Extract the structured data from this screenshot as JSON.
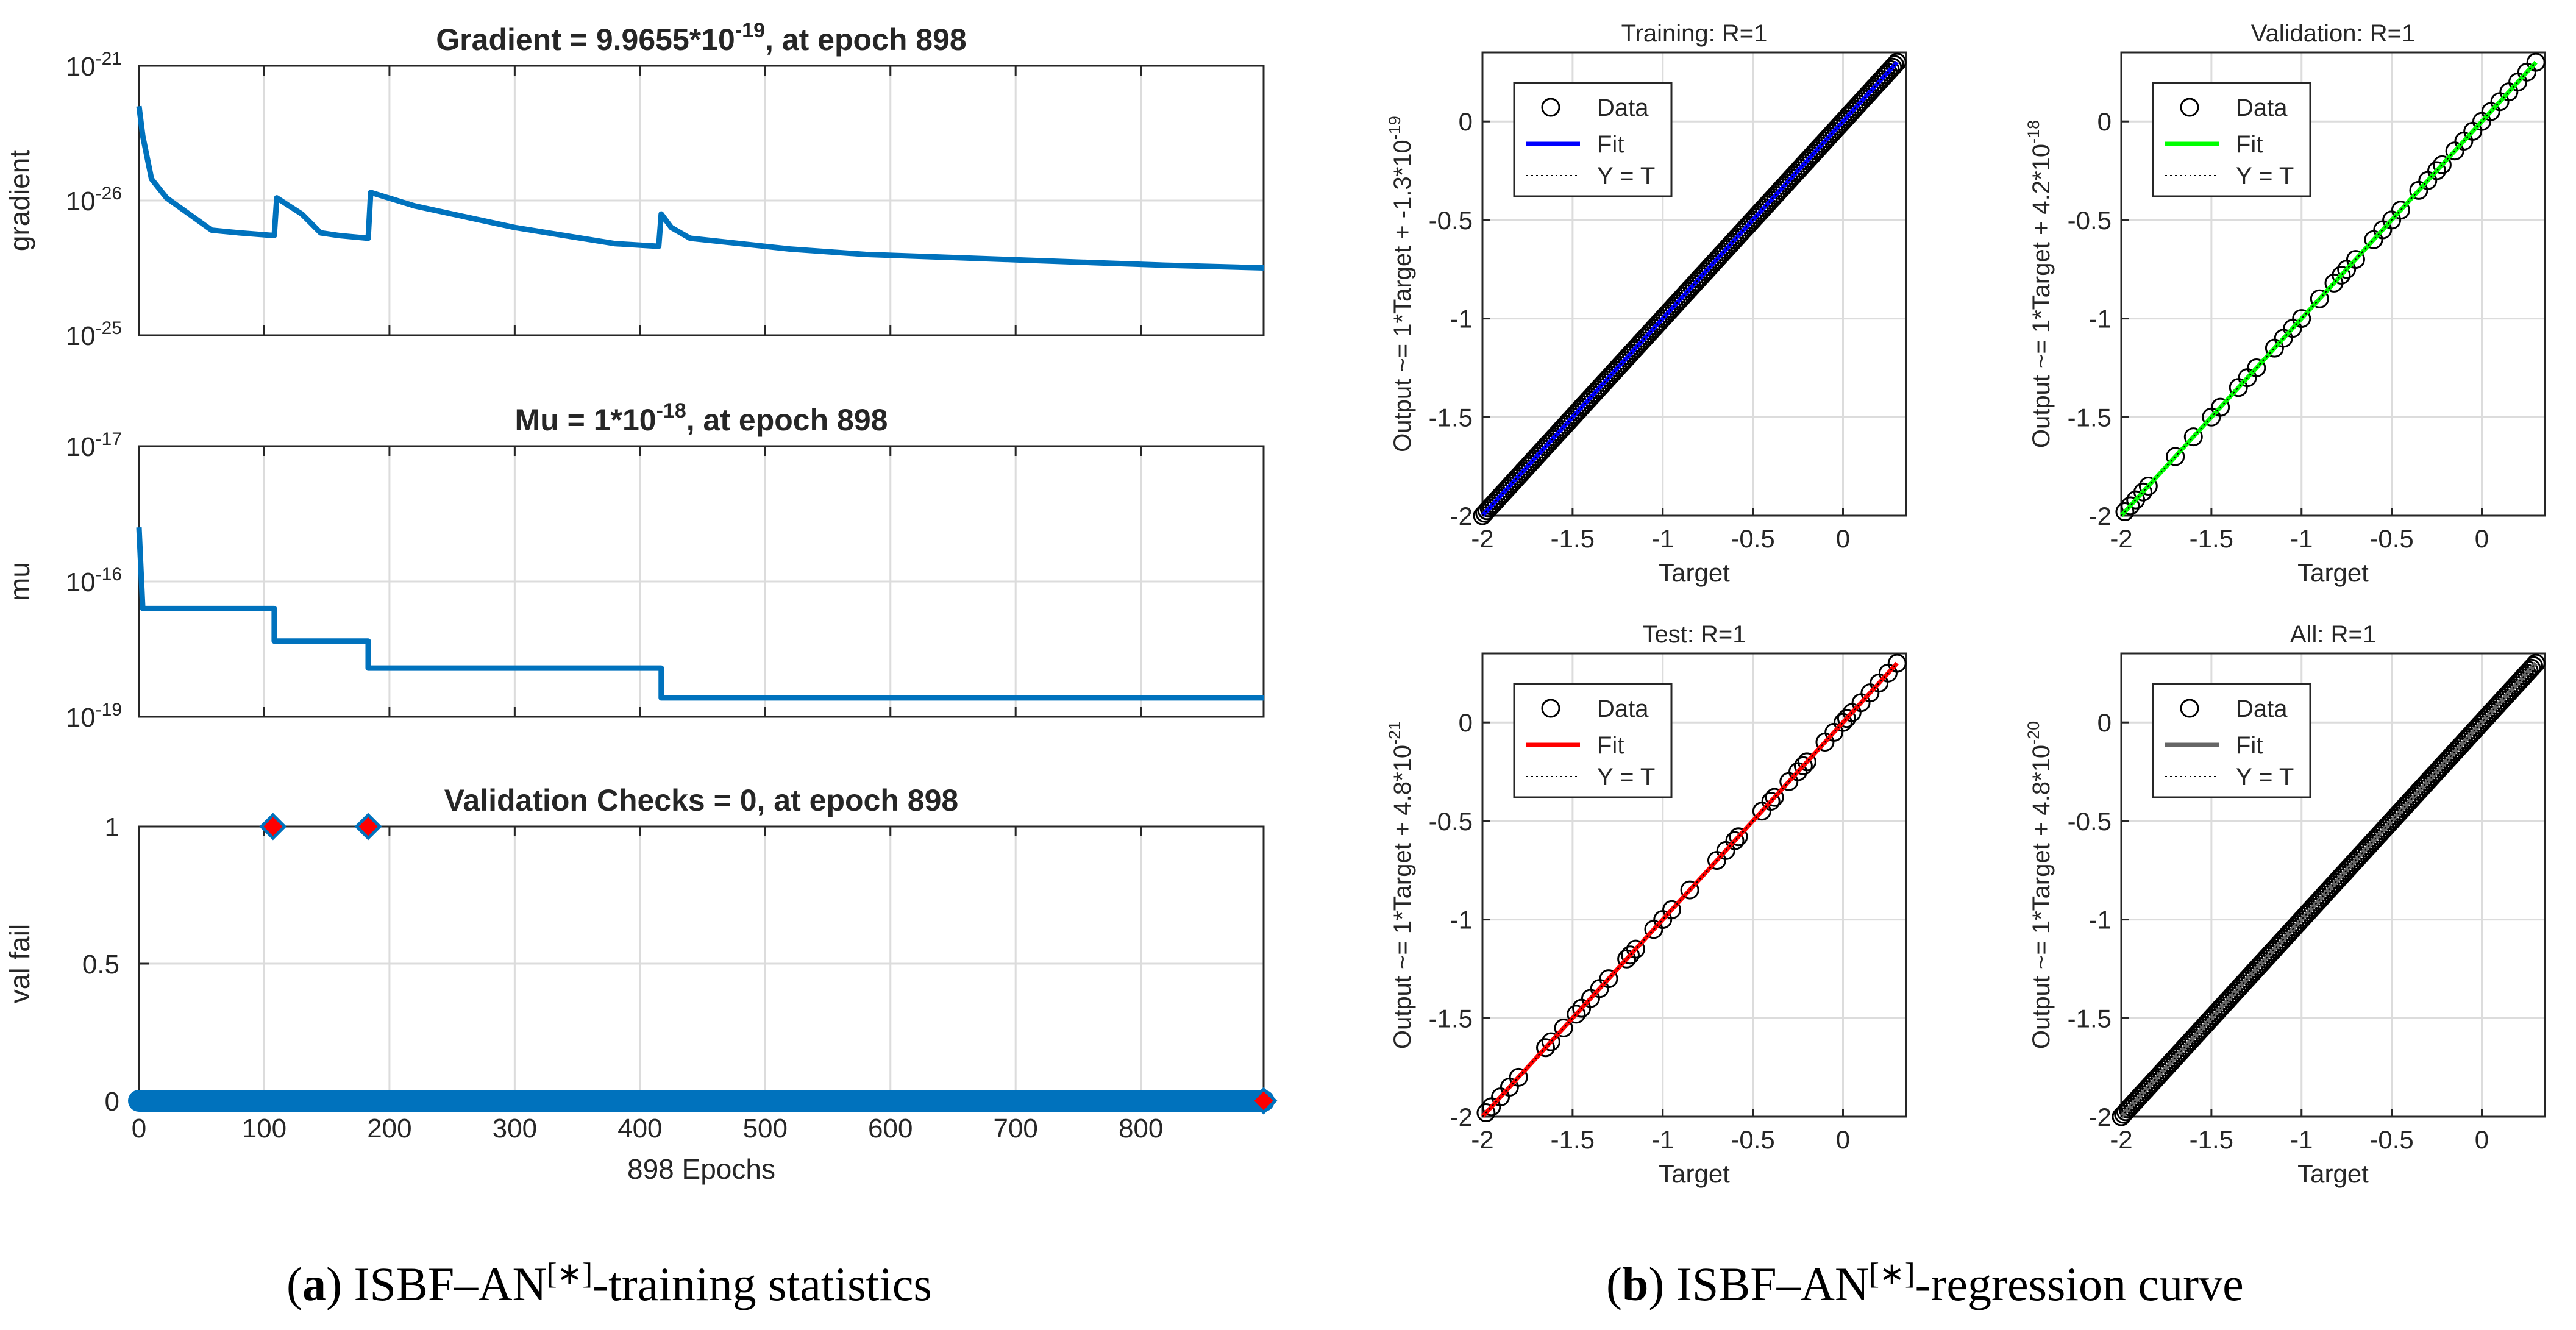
{
  "chart_data": [
    {
      "type": "line",
      "title": {
        "main": "Gradient = 9.9655*10",
        "exp": "-19",
        "tail": ", at epoch 898"
      },
      "ylabel": "gradient",
      "yscale": "log",
      "yticks": [
        {
          "base": "10",
          "exp": "-21"
        },
        {
          "base": "10",
          "exp": "-26"
        },
        {
          "base": "10",
          "exp": "-25"
        }
      ],
      "xlim": [
        0,
        898
      ],
      "x": [
        0,
        3,
        10,
        22,
        40,
        58,
        80,
        108,
        110,
        130,
        145,
        160,
        183,
        185,
        220,
        260,
        300,
        340,
        380,
        415,
        417,
        425,
        440,
        480,
        520,
        580,
        640,
        700,
        760,
        820,
        898
      ],
      "y": [
        0.15,
        0.26,
        0.42,
        0.49,
        0.55,
        0.61,
        0.62,
        0.63,
        0.49,
        0.55,
        0.62,
        0.63,
        0.64,
        0.47,
        0.52,
        0.56,
        0.6,
        0.63,
        0.66,
        0.67,
        0.55,
        0.6,
        0.64,
        0.66,
        0.68,
        0.7,
        0.71,
        0.72,
        0.73,
        0.74,
        0.75
      ],
      "y_note": "y expressed as fraction of axis height from top (log scale shown by tick labels)"
    },
    {
      "type": "line",
      "title": {
        "main": "Mu = 1*10",
        "exp": "-18",
        "tail": ", at epoch 898"
      },
      "ylabel": "mu",
      "yscale": "log",
      "yticks": [
        {
          "base": "10",
          "exp": "-17"
        },
        {
          "base": "10",
          "exp": "-16"
        },
        {
          "base": "10",
          "exp": "-19"
        }
      ],
      "xlim": [
        0,
        898
      ],
      "x": [
        0,
        3,
        3,
        108,
        108,
        183,
        183,
        417,
        417,
        898
      ],
      "y": [
        0.3,
        0.6,
        0.6,
        0.6,
        0.72,
        0.72,
        0.82,
        0.82,
        0.93,
        0.93
      ],
      "y_note": "y expressed as fraction of axis height from top (log scale shown by tick labels)"
    },
    {
      "type": "line",
      "title": "Validation Checks = 0, at epoch 898",
      "ylabel": "val fail",
      "xlabel": "898 Epochs",
      "ylim": [
        0,
        1
      ],
      "xlim": [
        0,
        898
      ],
      "xticks": [
        "0",
        "100",
        "200",
        "300",
        "400",
        "500",
        "600",
        "700",
        "800"
      ],
      "yticks": [
        "0",
        "0.5",
        "1"
      ],
      "marker_points": [
        {
          "x": 107,
          "y": 1
        },
        {
          "x": 183,
          "y": 1
        },
        {
          "x": 898,
          "y": 0
        }
      ],
      "baseline": {
        "from": 0,
        "to": 898,
        "y": 0
      }
    },
    {
      "type": "scatter",
      "title": "Training: R=1",
      "xlabel": "Target",
      "ylabel": "Output ~= 1*Target + -1.3*10",
      "ylabel_exp": "-19",
      "fit_color": "#0000ff",
      "point_mode": "dense",
      "xlim": [
        -2,
        0.35
      ],
      "ylim": [
        -2,
        0.35
      ],
      "ticks": [
        "-2",
        "-1.5",
        "-1",
        "-0.5",
        "0"
      ],
      "legend": [
        "Data",
        "Fit",
        "Y = T"
      ]
    },
    {
      "type": "scatter",
      "title": "Validation: R=1",
      "xlabel": "Target",
      "ylabel": "Output ~= 1*Target + 4.2*10",
      "ylabel_exp": "-18",
      "fit_color": "#00ff00",
      "point_mode": "sparse",
      "points": [
        -1.98,
        -1.95,
        -1.92,
        -1.88,
        -1.85,
        -1.7,
        -1.6,
        -1.5,
        -1.45,
        -1.35,
        -1.3,
        -1.25,
        -1.15,
        -1.1,
        -1.05,
        -1.0,
        -0.9,
        -0.82,
        -0.78,
        -0.75,
        -0.7,
        -0.6,
        -0.55,
        -0.5,
        -0.45,
        -0.35,
        -0.3,
        -0.25,
        -0.22,
        -0.15,
        -0.1,
        -0.05,
        0.0,
        0.05,
        0.1,
        0.15,
        0.2,
        0.25,
        0.3
      ],
      "xlim": [
        -2,
        0.35
      ],
      "ylim": [
        -2,
        0.35
      ],
      "ticks": [
        "-2",
        "-1.5",
        "-1",
        "-0.5",
        "0"
      ],
      "legend": [
        "Data",
        "Fit",
        "Y = T"
      ]
    },
    {
      "type": "scatter",
      "title": "Test: R=1",
      "xlabel": "Target",
      "ylabel": "Output ~= 1*Target + 4.8*10",
      "ylabel_exp": "-21",
      "fit_color": "#ff0000",
      "point_mode": "sparse",
      "points": [
        -1.98,
        -1.95,
        -1.9,
        -1.85,
        -1.8,
        -1.65,
        -1.62,
        -1.55,
        -1.48,
        -1.45,
        -1.4,
        -1.35,
        -1.3,
        -1.2,
        -1.18,
        -1.15,
        -1.05,
        -1.0,
        -0.95,
        -0.85,
        -0.7,
        -0.65,
        -0.6,
        -0.58,
        -0.45,
        -0.4,
        -0.38,
        -0.3,
        -0.25,
        -0.22,
        -0.2,
        -0.1,
        -0.05,
        0.0,
        0.02,
        0.05,
        0.1,
        0.15,
        0.2,
        0.25,
        0.3
      ],
      "xlim": [
        -2,
        0.35
      ],
      "ylim": [
        -2,
        0.35
      ],
      "ticks": [
        "-2",
        "-1.5",
        "-1",
        "-0.5",
        "0"
      ],
      "legend": [
        "Data",
        "Fit",
        "Y = T"
      ]
    },
    {
      "type": "scatter",
      "title": "All: R=1",
      "xlabel": "Target",
      "ylabel": "Output ~= 1*Target + 4.8*10",
      "ylabel_exp": "-20",
      "fit_color": "#666666",
      "point_mode": "dense",
      "xlim": [
        -2,
        0.35
      ],
      "ylim": [
        -2,
        0.35
      ],
      "ticks": [
        "-2",
        "-1.5",
        "-1",
        "-0.5",
        "0"
      ],
      "legend": [
        "Data",
        "Fit",
        "Y = T"
      ]
    }
  ],
  "captions": {
    "a": {
      "label": "a",
      "text1": "ISBF–AN",
      "sup": "[∗]",
      "text2": "-training statistics"
    },
    "b": {
      "label": "b",
      "text1": "ISBF–AN",
      "sup": "[∗]",
      "text2": "-regression curve"
    }
  },
  "colors": {
    "line": "#0072bd",
    "marker_fill": "#ff0000",
    "grid": "#dcdcdc",
    "axis": "#262626"
  }
}
